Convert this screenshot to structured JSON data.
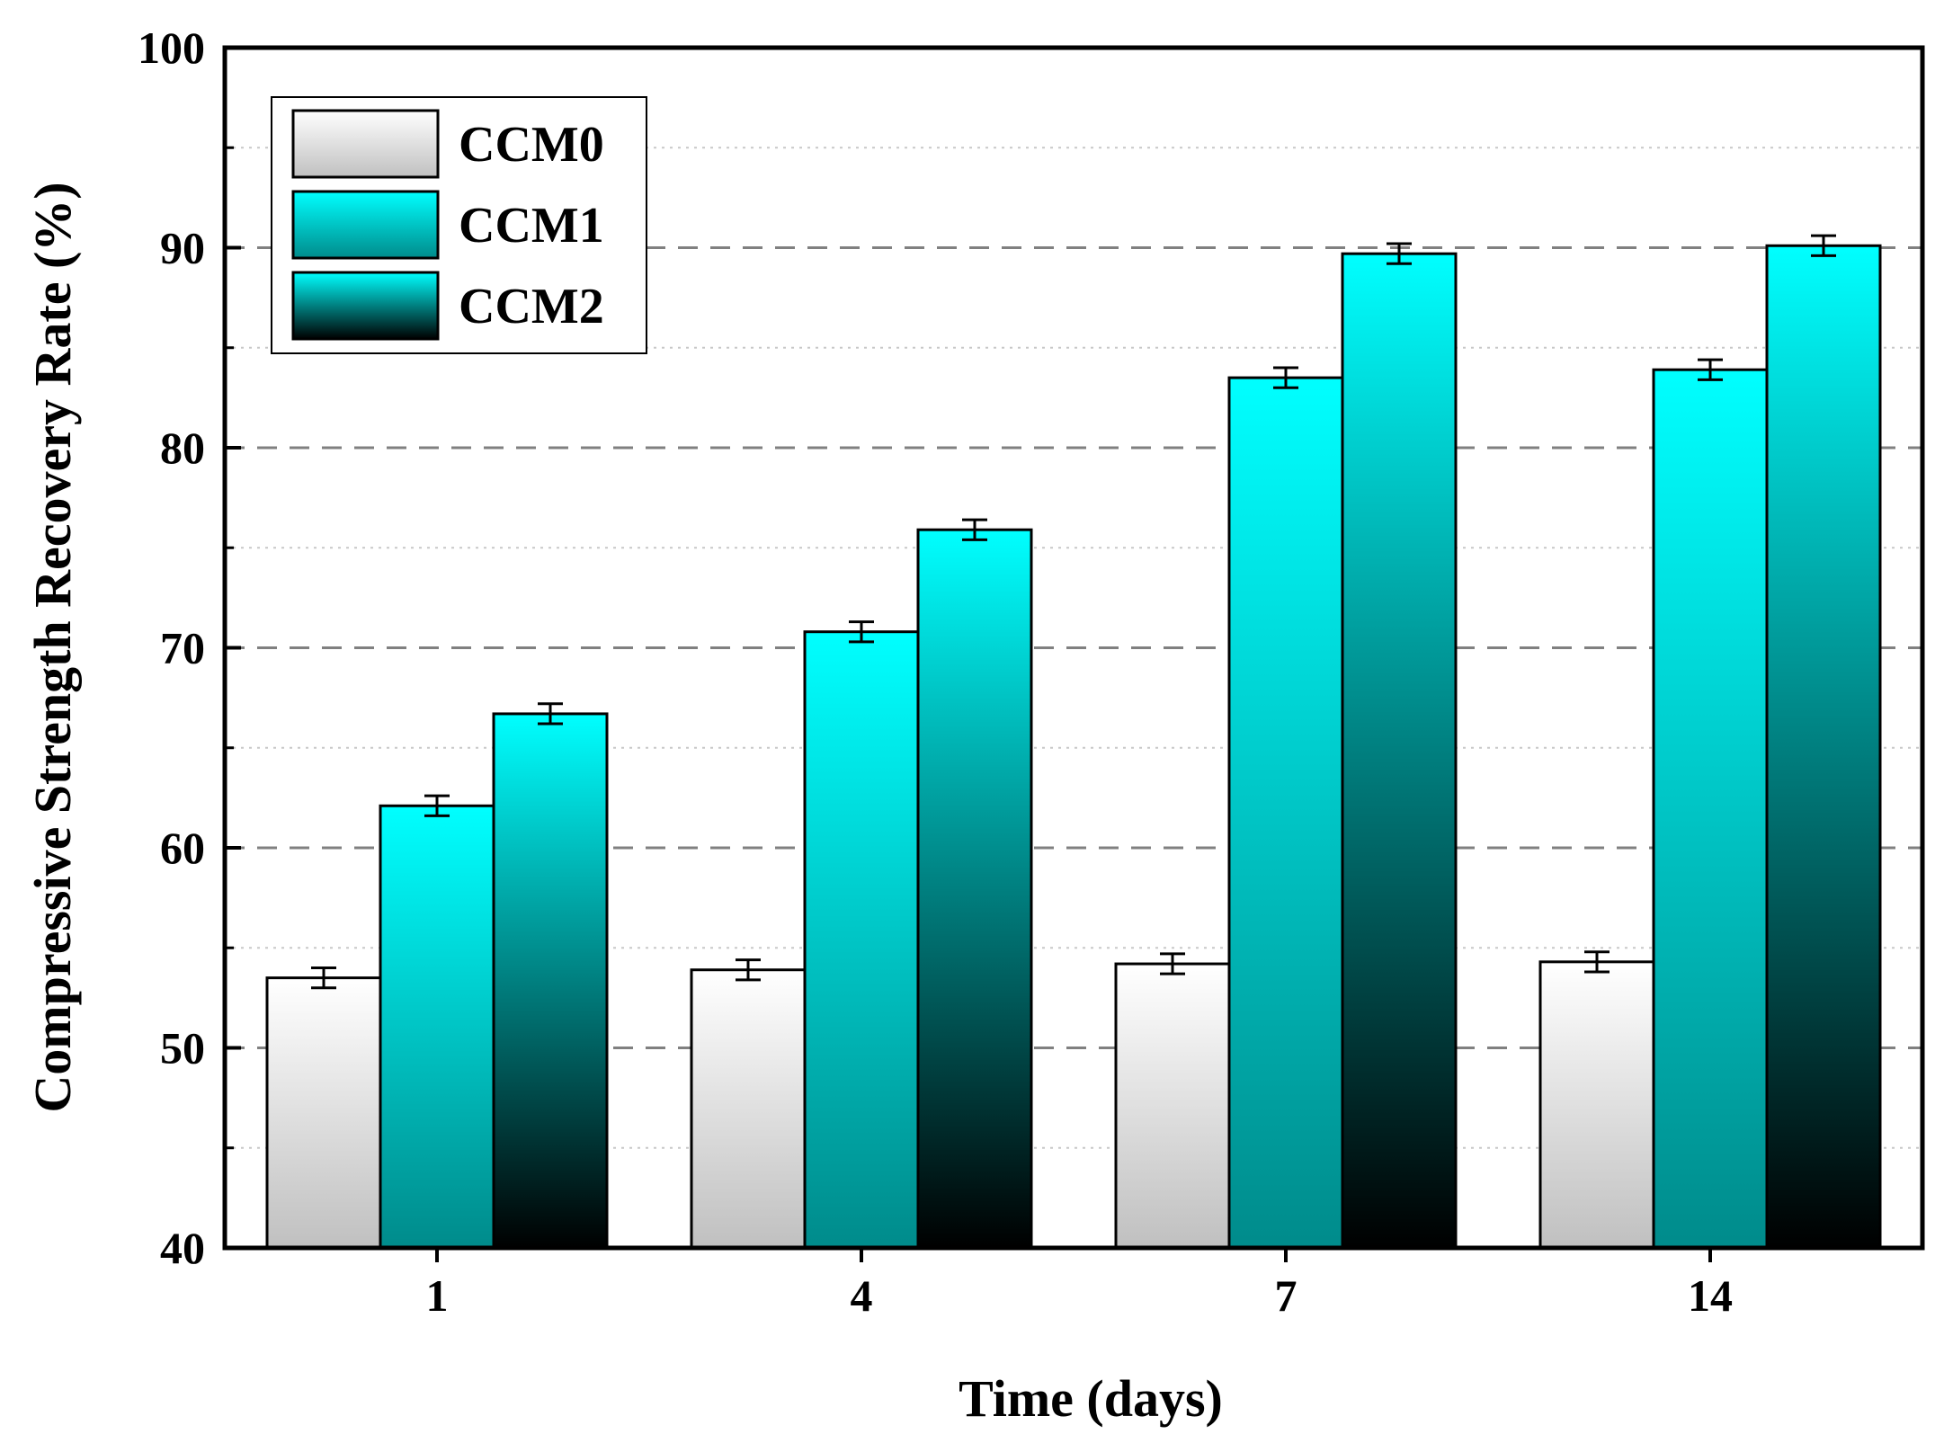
{
  "chart_data": {
    "type": "bar",
    "title": "",
    "xlabel": "Time (days)",
    "ylabel": "Compressive Strength Recovery Rate (%)",
    "ylim": [
      40,
      100
    ],
    "yticks": [
      "40",
      "50",
      "60",
      "70",
      "80",
      "90",
      "100"
    ],
    "categories": [
      "1",
      "4",
      "7",
      "14"
    ],
    "grid": {
      "major_dashed": true,
      "minor_dotted": true
    },
    "legend_position": "top-left",
    "series": [
      {
        "name": "CCM0",
        "values": [
          53.5,
          53.9,
          54.2,
          54.3
        ],
        "errors": [
          0.5,
          0.5,
          0.5,
          0.5
        ],
        "color_top": "#ffffff",
        "color_bottom": "#c0c0c0"
      },
      {
        "name": "CCM1",
        "values": [
          62.1,
          70.8,
          83.5,
          83.9
        ],
        "errors": [
          0.5,
          0.5,
          0.5,
          0.5
        ],
        "color_top": "#00ffff",
        "color_bottom": "#008b8b"
      },
      {
        "name": "CCM2",
        "values": [
          66.7,
          75.9,
          89.7,
          90.1
        ],
        "errors": [
          0.5,
          0.5,
          0.5,
          0.5
        ],
        "color_top": "#00ffff",
        "color_bottom": "#000000"
      }
    ]
  }
}
